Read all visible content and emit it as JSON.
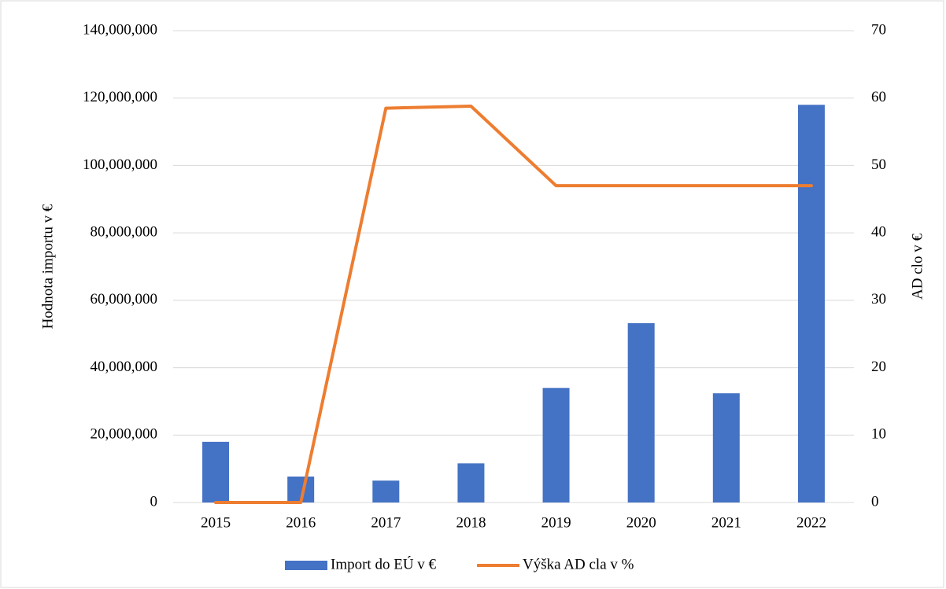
{
  "chart_data": {
    "type": "bar_line",
    "categories": [
      "2015",
      "2016",
      "2017",
      "2018",
      "2019",
      "2020",
      "2021",
      "2022"
    ],
    "series": [
      {
        "name": "Import do EÚ v €",
        "color": "#4472c4",
        "type": "bar",
        "values": [
          18000000,
          7700000,
          6500000,
          11600000,
          34000000,
          53200000,
          32400000,
          118000000
        ]
      },
      {
        "name": "Výška AD cla v %",
        "color": "#ed7d31",
        "type": "line",
        "axis": "y2",
        "values": [
          0,
          0,
          58.5,
          58.8,
          47,
          47,
          47,
          47
        ]
      }
    ],
    "ylabel": "Hodnota importu v €",
    "y2label": "AD clo v €",
    "ylim": [
      0,
      140000000
    ],
    "yticks": [
      0,
      {
        "value": 20000000,
        "label": "20,000,000"
      },
      {
        "value": 40000000,
        "label": "40,000,000"
      },
      {
        "value": 60000000,
        "label": "60,000,000"
      },
      {
        "value": 80000000,
        "label": "80,000,000"
      },
      {
        "value": 100000000,
        "label": "100,000,000"
      },
      {
        "value": 120000000,
        "label": "120,000,000"
      },
      {
        "value": 140000000,
        "label": "140,000,000"
      }
    ],
    "y2lim": [
      0,
      70
    ],
    "y2ticks": [
      0,
      10,
      20,
      30,
      40,
      50,
      60,
      70
    ],
    "grid": true,
    "legend": "bottom"
  }
}
